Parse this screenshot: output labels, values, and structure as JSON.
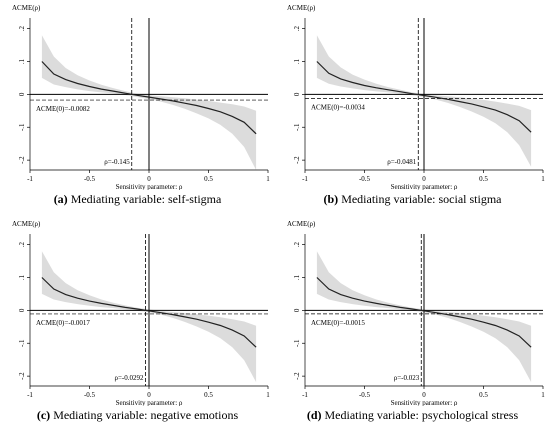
{
  "chart_data": [
    {
      "type": "line",
      "caption_letter": "(a)",
      "caption_text": "Mediating variable: self-stigma",
      "ylabel": "ACME(ρ)",
      "xlabel": "Sensitivity parameter: ρ",
      "xlim": [
        -1,
        1
      ],
      "ylim": [
        -0.23,
        0.22
      ],
      "xticks": [
        -1,
        -0.5,
        0,
        0.5,
        1
      ],
      "xtick_labels": [
        "-1",
        "-0.5",
        "0",
        "0.5",
        "1"
      ],
      "yticks": [
        0.2,
        0.1,
        0,
        -0.1,
        -0.2
      ],
      "ytick_labels": [
        ".2",
        ".1",
        "0",
        "-.1",
        "-.2"
      ],
      "acme0": -0.0082,
      "acme0_label": "ACME(0)=-0.0082",
      "rho_star": -0.145,
      "rho_label": "ρ=-0.145",
      "rho": [
        -0.9,
        -0.8,
        -0.7,
        -0.6,
        -0.5,
        -0.4,
        -0.3,
        -0.2,
        -0.1,
        0,
        0.1,
        0.2,
        0.3,
        0.4,
        0.5,
        0.6,
        0.7,
        0.8,
        0.9
      ],
      "acme": [
        0.1,
        0.062,
        0.045,
        0.033,
        0.024,
        0.016,
        0.01,
        0.0035,
        -0.003,
        -0.0082,
        -0.014,
        -0.02,
        -0.027,
        -0.034,
        -0.043,
        -0.053,
        -0.067,
        -0.085,
        -0.12
      ],
      "ci_upper": [
        0.18,
        0.115,
        0.08,
        0.058,
        0.042,
        0.029,
        0.019,
        0.01,
        0.002,
        -0.003,
        -0.006,
        -0.009,
        -0.012,
        -0.016,
        -0.02,
        -0.025,
        -0.03,
        -0.037,
        -0.05
      ],
      "ci_lower": [
        0.05,
        0.03,
        0.022,
        0.015,
        0.01,
        0.006,
        0.003,
        -0.002,
        -0.008,
        -0.014,
        -0.022,
        -0.032,
        -0.044,
        -0.058,
        -0.073,
        -0.093,
        -0.12,
        -0.16,
        -0.23
      ]
    },
    {
      "type": "line",
      "caption_letter": "(b)",
      "caption_text": "Mediating variable: social stigma",
      "ylabel": "ACME(ρ)",
      "xlabel": "Sensitivity parameter: ρ",
      "xlim": [
        -1,
        1
      ],
      "ylim": [
        -0.23,
        0.22
      ],
      "xticks": [
        -1,
        -0.5,
        0,
        0.5,
        1
      ],
      "xtick_labels": [
        "-1",
        "-0.5",
        "0",
        "0.5",
        "1"
      ],
      "yticks": [
        0.2,
        0.1,
        0,
        -0.1,
        -0.2
      ],
      "ytick_labels": [
        ".2",
        ".1",
        "0",
        "-.1",
        "-.2"
      ],
      "acme0": -0.0034,
      "acme0_label": "ACME(0)=-0.0034",
      "rho_star": -0.0481,
      "rho_label": "ρ=-0.0481",
      "rho": [
        -0.9,
        -0.8,
        -0.7,
        -0.6,
        -0.5,
        -0.4,
        -0.3,
        -0.2,
        -0.1,
        0,
        0.1,
        0.2,
        0.3,
        0.4,
        0.5,
        0.6,
        0.7,
        0.8,
        0.9
      ],
      "acme": [
        0.1,
        0.064,
        0.047,
        0.036,
        0.027,
        0.02,
        0.014,
        0.008,
        0.002,
        -0.0034,
        -0.009,
        -0.015,
        -0.022,
        -0.029,
        -0.038,
        -0.048,
        -0.062,
        -0.08,
        -0.115
      ],
      "ci_upper": [
        0.18,
        0.115,
        0.082,
        0.06,
        0.045,
        0.032,
        0.022,
        0.014,
        0.006,
        0.001,
        -0.003,
        -0.006,
        -0.009,
        -0.013,
        -0.017,
        -0.022,
        -0.028,
        -0.035,
        -0.048
      ],
      "ci_lower": [
        0.05,
        0.032,
        0.024,
        0.018,
        0.013,
        0.009,
        0.006,
        0.002,
        -0.003,
        -0.008,
        -0.016,
        -0.026,
        -0.038,
        -0.052,
        -0.068,
        -0.088,
        -0.115,
        -0.155,
        -0.22
      ]
    },
    {
      "type": "line",
      "caption_letter": "(c)",
      "caption_text": "Mediating variable: negative emotions",
      "ylabel": "ACME(ρ)",
      "xlabel": "Sensitivity parameter: ρ",
      "xlim": [
        -1,
        1
      ],
      "ylim": [
        -0.23,
        0.22
      ],
      "xticks": [
        -1,
        -0.5,
        0,
        0.5,
        1
      ],
      "xtick_labels": [
        "-1",
        "-0.5",
        "0",
        "0.5",
        "1"
      ],
      "yticks": [
        0.2,
        0.1,
        0,
        -0.1,
        -0.2
      ],
      "ytick_labels": [
        ".2",
        ".1",
        "0",
        "-.1",
        "-.2"
      ],
      "acme0": -0.0017,
      "acme0_label": "ACME(0)=-0.0017",
      "rho_star": -0.0292,
      "rho_label": "ρ=-0.0292",
      "rho": [
        -0.9,
        -0.8,
        -0.7,
        -0.6,
        -0.5,
        -0.4,
        -0.3,
        -0.2,
        -0.1,
        0,
        0.1,
        0.2,
        0.3,
        0.4,
        0.5,
        0.6,
        0.7,
        0.8,
        0.9
      ],
      "acme": [
        0.1,
        0.065,
        0.048,
        0.037,
        0.028,
        0.021,
        0.015,
        0.009,
        0.004,
        -0.0017,
        -0.007,
        -0.013,
        -0.02,
        -0.027,
        -0.036,
        -0.046,
        -0.06,
        -0.078,
        -0.112
      ],
      "ci_upper": [
        0.18,
        0.116,
        0.083,
        0.061,
        0.046,
        0.033,
        0.023,
        0.015,
        0.008,
        0.003,
        -0.002,
        -0.005,
        -0.008,
        -0.012,
        -0.016,
        -0.021,
        -0.027,
        -0.034,
        -0.047
      ],
      "ci_lower": [
        0.05,
        0.033,
        0.025,
        0.019,
        0.014,
        0.01,
        0.007,
        0.003,
        -0.001,
        -0.006,
        -0.013,
        -0.023,
        -0.035,
        -0.049,
        -0.065,
        -0.085,
        -0.112,
        -0.152,
        -0.218
      ]
    },
    {
      "type": "line",
      "caption_letter": "(d)",
      "caption_text": "Mediating variable: psychological stress",
      "ylabel": "ACME(ρ)",
      "xlabel": "Sensitivity parameter: ρ",
      "xlim": [
        -1,
        1
      ],
      "ylim": [
        -0.23,
        0.22
      ],
      "xticks": [
        -1,
        -0.5,
        0,
        0.5,
        1
      ],
      "xtick_labels": [
        "-1",
        "-0.5",
        "0",
        "0.5",
        "1"
      ],
      "yticks": [
        0.2,
        0.1,
        0,
        -0.1,
        -0.2
      ],
      "ytick_labels": [
        ".2",
        ".1",
        "0",
        "-.1",
        "-.2"
      ],
      "acme0": -0.0015,
      "acme0_label": "ACME(0)=-0.0015",
      "rho_star": -0.023,
      "rho_label": "ρ=-0.023",
      "rho": [
        -0.9,
        -0.8,
        -0.7,
        -0.6,
        -0.5,
        -0.4,
        -0.3,
        -0.2,
        -0.1,
        0,
        0.1,
        0.2,
        0.3,
        0.4,
        0.5,
        0.6,
        0.7,
        0.8,
        0.9
      ],
      "acme": [
        0.1,
        0.065,
        0.048,
        0.037,
        0.028,
        0.021,
        0.015,
        0.009,
        0.004,
        -0.0015,
        -0.007,
        -0.013,
        -0.02,
        -0.027,
        -0.036,
        -0.046,
        -0.06,
        -0.078,
        -0.112
      ],
      "ci_upper": [
        0.18,
        0.116,
        0.083,
        0.061,
        0.046,
        0.033,
        0.023,
        0.015,
        0.008,
        0.003,
        -0.002,
        -0.005,
        -0.008,
        -0.012,
        -0.016,
        -0.021,
        -0.027,
        -0.034,
        -0.047
      ],
      "ci_lower": [
        0.05,
        0.033,
        0.025,
        0.019,
        0.014,
        0.01,
        0.007,
        0.003,
        -0.001,
        -0.006,
        -0.013,
        -0.023,
        -0.035,
        -0.049,
        -0.065,
        -0.085,
        -0.112,
        -0.152,
        -0.218
      ]
    }
  ],
  "colors": {
    "band": "#dcdcdc",
    "line": "#222222",
    "axis": "#000000"
  }
}
